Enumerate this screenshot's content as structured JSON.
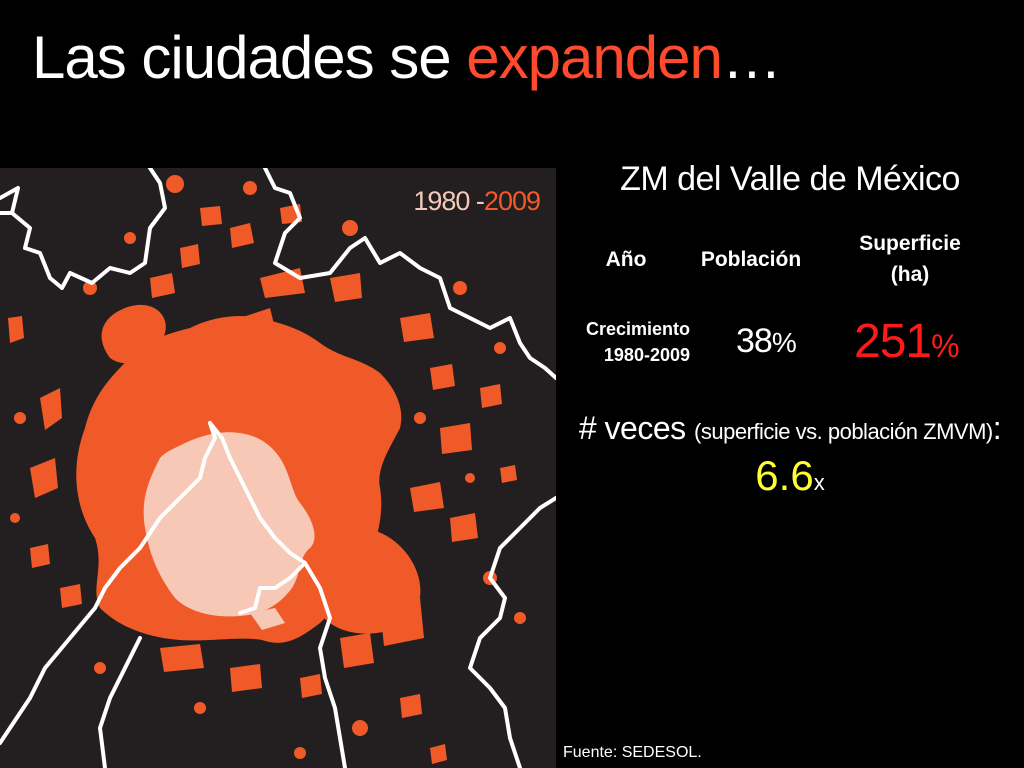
{
  "title": {
    "prefix": "Las ciudades se ",
    "accent": "expanden",
    "suffix": "…"
  },
  "colors": {
    "background": "#000000",
    "map_background": "#231f20",
    "expansion_orange": "#f05a28",
    "urban_1980_pink": "#f6c8b5",
    "accent_red": "#ff4a2e",
    "value_red": "#ff1a1a",
    "factor_yellow": "#ffff33"
  },
  "map": {
    "legend_start": "1980 -",
    "legend_end": "2009"
  },
  "stats": {
    "heading": "ZM del Valle de México",
    "col_year": "Año",
    "col_population": "Población",
    "col_surface_line1": "Superficie",
    "col_surface_line2": "(ha)",
    "row_label_line1": "Crecimiento",
    "row_label_line2": "1980-2009",
    "population_growth": "38",
    "population_unit": "%",
    "surface_growth": "251",
    "surface_unit": "%"
  },
  "ratio": {
    "prefix": "# veces ",
    "paren": "(superficie vs. población ZMVM)",
    "suffix": ":",
    "value": "6.6",
    "unit": "x"
  },
  "source": "Fuente: SEDESOL."
}
